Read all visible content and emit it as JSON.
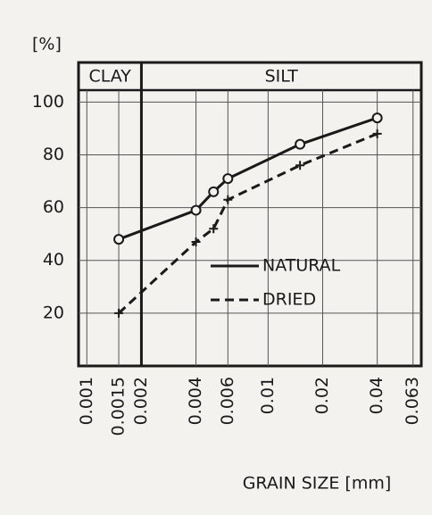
{
  "chart_data": {
    "type": "line",
    "y_label": "[%]",
    "x_label": "GRAIN SIZE [mm]",
    "zones": [
      "CLAY",
      "SILT"
    ],
    "zone_boundary": 0.002,
    "log_x": true,
    "xlim": [
      0.0009,
      0.07
    ],
    "xticks": [
      0.001,
      0.0015,
      0.002,
      0.004,
      0.006,
      0.01,
      0.02,
      0.04,
      0.063
    ],
    "ylim": [
      0,
      115
    ],
    "yticks": [
      20,
      40,
      60,
      80,
      100
    ],
    "grid": true,
    "series": [
      {
        "name": "NATURAL",
        "color": "#1a1a1a",
        "dash": false,
        "marker": "circle",
        "x": [
          0.0015,
          0.004,
          0.005,
          0.006,
          0.015,
          0.04
        ],
        "values": [
          48,
          59,
          66,
          71,
          84,
          94
        ]
      },
      {
        "name": "DRIED",
        "color": "#1a1a1a",
        "dash": true,
        "marker": "plus",
        "x": [
          0.0015,
          0.004,
          0.005,
          0.006,
          0.015,
          0.04
        ],
        "values": [
          20,
          47,
          52,
          63,
          76,
          88
        ]
      }
    ]
  }
}
